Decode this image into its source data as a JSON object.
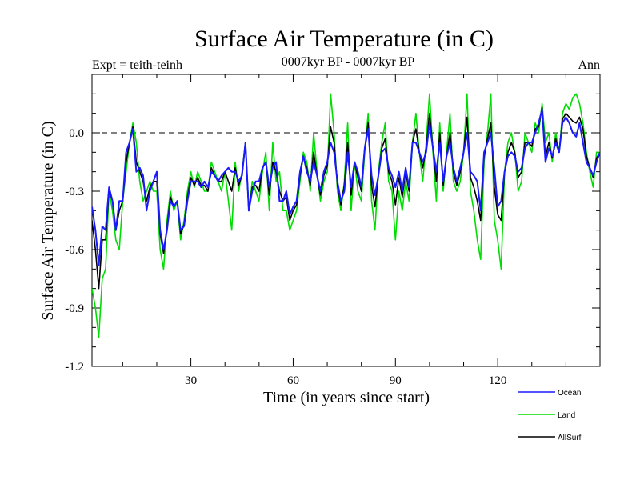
{
  "chart_data": {
    "type": "line",
    "title": "Surface Air Temperature (in C)",
    "subtitle_left": "Expt = teith-teinh",
    "subtitle_center": "0007kyr BP - 0007kyr BP",
    "subtitle_right": "Ann",
    "xlabel": "Time (in years since start)",
    "ylabel": "Surface Air Temperature (in C)",
    "xlim": [
      1,
      150
    ],
    "ylim": [
      -1.2,
      0.3
    ],
    "xticks": [
      30,
      60,
      90,
      120
    ],
    "xtick_labels": [
      "30",
      "60",
      "90",
      "120"
    ],
    "yticks": [
      -1.2,
      -0.9,
      -0.6,
      -0.3,
      0.0
    ],
    "ytick_labels": [
      "-1.2",
      "-0.9",
      "-0.6",
      "-0.3",
      "0.0"
    ],
    "reference_line": 0.0,
    "x": [
      1,
      2,
      3,
      4,
      5,
      6,
      7,
      8,
      9,
      10,
      11,
      12,
      13,
      14,
      15,
      16,
      17,
      18,
      19,
      20,
      21,
      22,
      23,
      24,
      25,
      26,
      27,
      28,
      29,
      30,
      31,
      32,
      33,
      34,
      35,
      36,
      37,
      38,
      39,
      40,
      41,
      42,
      43,
      44,
      45,
      46,
      47,
      48,
      49,
      50,
      51,
      52,
      53,
      54,
      55,
      56,
      57,
      58,
      59,
      60,
      61,
      62,
      63,
      64,
      65,
      66,
      67,
      68,
      69,
      70,
      71,
      72,
      73,
      74,
      75,
      76,
      77,
      78,
      79,
      80,
      81,
      82,
      83,
      84,
      85,
      86,
      87,
      88,
      89,
      90,
      91,
      92,
      93,
      94,
      95,
      96,
      97,
      98,
      99,
      100,
      101,
      102,
      103,
      104,
      105,
      106,
      107,
      108,
      109,
      110,
      111,
      112,
      113,
      114,
      115,
      116,
      117,
      118,
      119,
      120,
      121,
      122,
      123,
      124,
      125,
      126,
      127,
      128,
      129,
      130,
      131,
      132,
      133,
      134,
      135,
      136,
      137,
      138,
      139,
      140,
      141,
      142,
      143,
      144,
      145,
      146,
      147,
      148,
      149,
      150
    ],
    "series": [
      {
        "name": "Ocean",
        "color": "#1a1aff",
        "values": [
          -0.38,
          -0.5,
          -0.68,
          -0.48,
          -0.5,
          -0.28,
          -0.35,
          -0.5,
          -0.35,
          -0.35,
          -0.1,
          -0.05,
          0.02,
          -0.2,
          -0.18,
          -0.22,
          -0.4,
          -0.3,
          -0.25,
          -0.2,
          -0.5,
          -0.6,
          -0.5,
          -0.35,
          -0.38,
          -0.35,
          -0.5,
          -0.48,
          -0.35,
          -0.25,
          -0.25,
          -0.25,
          -0.28,
          -0.25,
          -0.28,
          -0.2,
          -0.22,
          -0.25,
          -0.22,
          -0.2,
          -0.18,
          -0.2,
          -0.2,
          -0.25,
          -0.22,
          -0.05,
          -0.4,
          -0.3,
          -0.25,
          -0.25,
          -0.18,
          -0.15,
          -0.28,
          -0.18,
          -0.15,
          -0.35,
          -0.35,
          -0.3,
          -0.42,
          -0.38,
          -0.35,
          -0.2,
          -0.12,
          -0.2,
          -0.25,
          -0.15,
          -0.22,
          -0.3,
          -0.2,
          -0.15,
          -0.05,
          -0.1,
          -0.25,
          -0.35,
          -0.3,
          -0.1,
          -0.28,
          -0.15,
          -0.2,
          -0.28,
          -0.08,
          0.02,
          -0.22,
          -0.32,
          -0.22,
          -0.1,
          -0.08,
          -0.18,
          -0.22,
          -0.28,
          -0.2,
          -0.3,
          -0.18,
          -0.28,
          -0.05,
          -0.05,
          -0.1,
          -0.15,
          -0.1,
          0.05,
          -0.08,
          -0.2,
          -0.05,
          -0.25,
          -0.12,
          -0.05,
          -0.18,
          -0.25,
          -0.18,
          -0.1,
          0.0,
          -0.2,
          -0.22,
          -0.25,
          -0.4,
          -0.1,
          -0.05,
          0.0,
          -0.18,
          -0.38,
          -0.35,
          -0.2,
          -0.12,
          -0.1,
          -0.12,
          -0.2,
          -0.18,
          -0.08,
          -0.05,
          -0.05,
          0.0,
          0.05,
          0.12,
          -0.15,
          -0.08,
          -0.12,
          -0.05,
          -0.1,
          0.05,
          0.08,
          0.05,
          0.0,
          -0.02,
          0.05,
          -0.05,
          -0.15,
          -0.18,
          -0.22,
          -0.15,
          -0.1
        ]
      },
      {
        "name": "Land",
        "color": "#00dd00",
        "values": [
          -0.8,
          -0.9,
          -1.05,
          -0.75,
          -0.7,
          -0.3,
          -0.4,
          -0.55,
          -0.6,
          -0.35,
          -0.2,
          -0.05,
          0.05,
          -0.05,
          -0.25,
          -0.35,
          -0.3,
          -0.25,
          -0.3,
          -0.3,
          -0.6,
          -0.7,
          -0.45,
          -0.3,
          -0.4,
          -0.35,
          -0.55,
          -0.45,
          -0.3,
          -0.2,
          -0.28,
          -0.2,
          -0.25,
          -0.3,
          -0.3,
          -0.15,
          -0.2,
          -0.25,
          -0.3,
          -0.2,
          -0.35,
          -0.5,
          -0.15,
          -0.3,
          -0.2,
          -0.05,
          -0.4,
          -0.25,
          -0.3,
          -0.35,
          -0.2,
          -0.1,
          -0.4,
          -0.05,
          -0.25,
          -0.2,
          -0.4,
          -0.4,
          -0.5,
          -0.45,
          -0.4,
          -0.25,
          -0.1,
          -0.15,
          -0.3,
          0.0,
          -0.2,
          -0.35,
          -0.25,
          -0.2,
          0.2,
          0.0,
          -0.3,
          -0.4,
          -0.25,
          0.05,
          -0.4,
          -0.15,
          -0.3,
          -0.35,
          -0.1,
          0.1,
          -0.35,
          -0.5,
          -0.2,
          -0.05,
          0.05,
          -0.25,
          -0.3,
          -0.55,
          -0.3,
          -0.4,
          -0.25,
          -0.35,
          -0.05,
          0.1,
          -0.1,
          -0.25,
          -0.05,
          0.2,
          -0.1,
          -0.35,
          0.05,
          -0.3,
          -0.1,
          0.1,
          -0.25,
          -0.3,
          -0.25,
          -0.1,
          0.2,
          -0.3,
          -0.4,
          -0.55,
          -0.65,
          -0.15,
          0.0,
          0.2,
          -0.45,
          -0.55,
          -0.7,
          -0.2,
          -0.05,
          0.0,
          -0.1,
          -0.3,
          -0.25,
          0.0,
          -0.05,
          -0.1,
          0.05,
          0.0,
          0.15,
          -0.05,
          0.0,
          -0.15,
          0.0,
          -0.1,
          0.1,
          0.15,
          0.12,
          0.18,
          0.2,
          0.15,
          0.05,
          -0.1,
          -0.2,
          -0.28,
          -0.1,
          -0.1
        ]
      },
      {
        "name": "AllSurf",
        "color": "#000000",
        "values": [
          -0.45,
          -0.6,
          -0.8,
          -0.55,
          -0.55,
          -0.3,
          -0.35,
          -0.5,
          -0.4,
          -0.35,
          -0.15,
          -0.05,
          0.03,
          -0.15,
          -0.2,
          -0.25,
          -0.35,
          -0.28,
          -0.25,
          -0.25,
          -0.52,
          -0.62,
          -0.48,
          -0.33,
          -0.38,
          -0.35,
          -0.52,
          -0.47,
          -0.33,
          -0.23,
          -0.27,
          -0.23,
          -0.27,
          -0.27,
          -0.3,
          -0.18,
          -0.22,
          -0.25,
          -0.25,
          -0.2,
          -0.25,
          -0.3,
          -0.18,
          -0.27,
          -0.22,
          -0.05,
          -0.4,
          -0.28,
          -0.27,
          -0.3,
          -0.18,
          -0.15,
          -0.32,
          -0.15,
          -0.2,
          -0.3,
          -0.35,
          -0.33,
          -0.45,
          -0.4,
          -0.37,
          -0.22,
          -0.12,
          -0.18,
          -0.27,
          -0.1,
          -0.22,
          -0.32,
          -0.22,
          -0.17,
          0.03,
          -0.05,
          -0.27,
          -0.37,
          -0.27,
          -0.05,
          -0.32,
          -0.15,
          -0.23,
          -0.3,
          -0.08,
          0.05,
          -0.27,
          -0.38,
          -0.22,
          -0.08,
          -0.03,
          -0.2,
          -0.25,
          -0.37,
          -0.23,
          -0.33,
          -0.2,
          -0.3,
          -0.05,
          0.02,
          -0.1,
          -0.18,
          -0.08,
          0.1,
          -0.08,
          -0.25,
          0.0,
          -0.27,
          -0.12,
          0.0,
          -0.2,
          -0.27,
          -0.2,
          -0.1,
          0.08,
          -0.23,
          -0.28,
          -0.35,
          -0.45,
          -0.12,
          -0.03,
          0.05,
          -0.28,
          -0.42,
          -0.45,
          -0.2,
          -0.1,
          -0.05,
          -0.1,
          -0.23,
          -0.2,
          -0.05,
          -0.05,
          -0.07,
          0.02,
          0.03,
          0.13,
          -0.12,
          -0.05,
          -0.13,
          -0.03,
          -0.1,
          0.07,
          0.1,
          0.08,
          0.06,
          0.05,
          0.08,
          0.02,
          -0.12,
          -0.18,
          -0.23,
          -0.13,
          -0.1
        ]
      }
    ]
  }
}
